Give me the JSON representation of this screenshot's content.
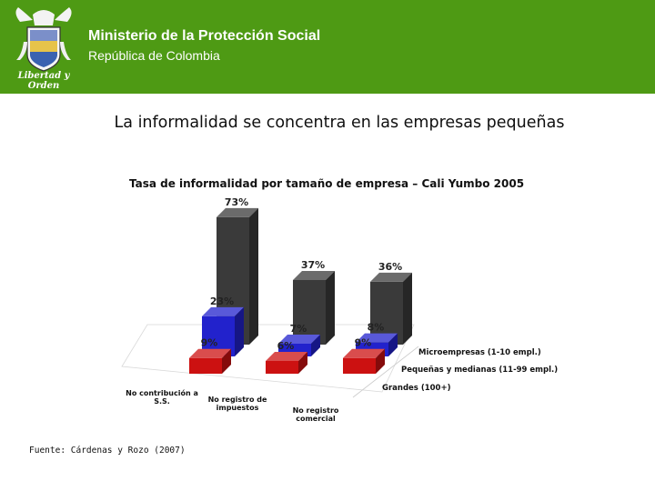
{
  "header": {
    "org_name": "Ministerio de la Protección Social",
    "org_subtitle": "República de Colombia",
    "crest_motto": "Libertad y Orden",
    "bg_color": "#4e9a14"
  },
  "slide": {
    "title": "La informalidad se concentra en las empresas pequeñas",
    "source": "Fuente: Cárdenas y Rozo (2007)"
  },
  "chart_data": {
    "type": "bar",
    "style": "3d-clustered",
    "title": "Tasa de informalidad por tamaño de empresa – Cali Yumbo 2005",
    "categories": [
      "No contribución a S.S.",
      "No registro de impuestos",
      "No registro comercial"
    ],
    "category_lines": [
      [
        "No contribución a",
        "S.S."
      ],
      [
        "No registro de",
        "impuestos"
      ],
      [
        "No registro",
        "comercial"
      ]
    ],
    "unit": "%",
    "series": [
      {
        "name": "Microempresas (1-10 empl.)",
        "values": [
          73,
          37,
          36
        ],
        "color": "#3a3a3a"
      },
      {
        "name": "Pequeñas y medianas (11-99 empl.)",
        "values": [
          23,
          7,
          8
        ],
        "color": "#2222cc"
      },
      {
        "name": "Grandes (100+)",
        "values": [
          9,
          6,
          9
        ],
        "color": "#cc1111"
      }
    ],
    "value_labels": [
      [
        "73%",
        "37%",
        "36%"
      ],
      [
        "23%",
        "7%",
        "8%"
      ],
      [
        "9%",
        "6%",
        "9%"
      ]
    ]
  }
}
